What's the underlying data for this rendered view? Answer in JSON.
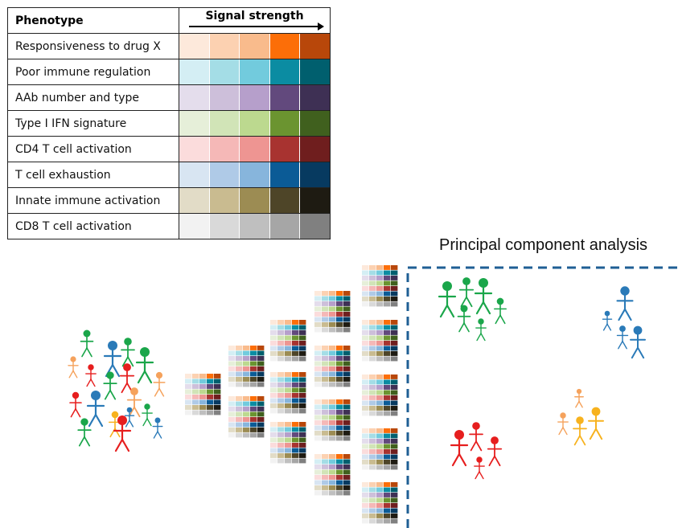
{
  "legend": {
    "header_phenotype": "Phenotype",
    "header_signal": "Signal strength",
    "rows": [
      {
        "label": "Responsiveness to drug X",
        "colors": [
          "#fde9db",
          "#fcd1b1",
          "#f9bb8c",
          "#fc6e08",
          "#b8470a"
        ]
      },
      {
        "label": "Poor immune regulation",
        "colors": [
          "#d4eef4",
          "#a4dde6",
          "#72cbdd",
          "#0b8ca2",
          "#005f6e"
        ]
      },
      {
        "label": "AAb number and type",
        "colors": [
          "#e4ddec",
          "#cdbfda",
          "#b69fcb",
          "#62497d",
          "#3e3054"
        ]
      },
      {
        "label": "Type I IFN signature",
        "colors": [
          "#e6efd9",
          "#d1e4b7",
          "#bcd98f",
          "#6b9430",
          "#40601e"
        ]
      },
      {
        "label": "CD4 T cell activation",
        "colors": [
          "#fbdcdc",
          "#f5b8b7",
          "#ee9592",
          "#a83330",
          "#6f1e1e"
        ]
      },
      {
        "label": "T cell exhaustion",
        "colors": [
          "#d8e5f2",
          "#afcae7",
          "#87b5dc",
          "#0b5b96",
          "#073a60"
        ]
      },
      {
        "label": "Innate immune activation",
        "colors": [
          "#e2dcc7",
          "#c9bb90",
          "#9c8c53",
          "#4e4528",
          "#1e1b12"
        ]
      },
      {
        "label": "CD8 T cell activation",
        "colors": [
          "#f2f2f2",
          "#d9d9d9",
          "#bfbfbf",
          "#a6a6a6",
          "#808080"
        ]
      }
    ]
  },
  "pca_title": "Principal component analysis",
  "colors": {
    "green": "#1aa64a",
    "blue": "#2a7ab8",
    "red": "#e61e1e",
    "orange": "#f5a25c",
    "gold": "#f7b21e",
    "dash": "#1f5f94"
  },
  "icons": [
    "person-icon",
    "mini-table-icon",
    "arrow-icon"
  ]
}
